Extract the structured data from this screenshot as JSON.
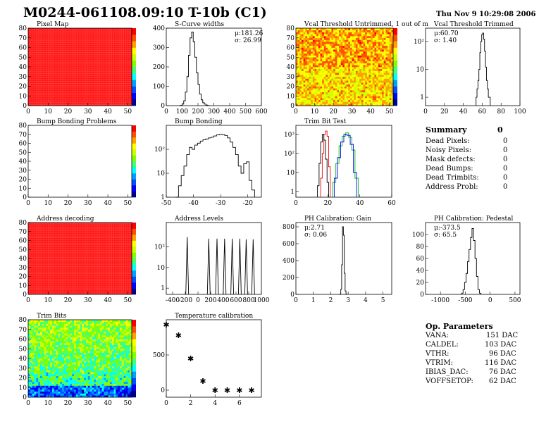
{
  "header": {
    "title": "M0244-061108.09:10 T-10b (C1)",
    "date": "Thu Nov  9 10:29:08 2006"
  },
  "colors": {
    "red": "#ff1a1a",
    "black": "#000000",
    "trim_red": "#ff0000",
    "trim_green": "#00bb00",
    "trim_blue": "#0000ff"
  },
  "summary": {
    "title": "Summary",
    "total": "0",
    "rows": [
      {
        "label": "Dead Pixels:",
        "value": "0"
      },
      {
        "label": "Noisy Pixels:",
        "value": "0"
      },
      {
        "label": "Mask defects:",
        "value": "0"
      },
      {
        "label": "Dead Bumps:",
        "value": "0"
      },
      {
        "label": "Dead Trimbits:",
        "value": "0"
      },
      {
        "label": "Address Probl:",
        "value": "0"
      }
    ]
  },
  "op_params": {
    "title": "Op. Parameters",
    "rows": [
      {
        "label": "VANA:",
        "value": "151 DAC"
      },
      {
        "label": "CALDEL:",
        "value": "103 DAC"
      },
      {
        "label": "VTHR:",
        "value": "96 DAC"
      },
      {
        "label": "VTRIM:",
        "value": "116 DAC"
      },
      {
        "label": "IBIAS_DAC:",
        "value": "76 DAC"
      },
      {
        "label": "VOFFSETOP:",
        "value": "62 DAC"
      }
    ]
  },
  "chart_data": [
    {
      "id": "pixel-map",
      "type": "heatmap",
      "title": "Pixel Map",
      "xlim": [
        0,
        52
      ],
      "ylim": [
        0,
        80
      ],
      "xticks": [
        "0",
        "10",
        "20",
        "30",
        "40",
        "50"
      ],
      "yticks": [
        "0",
        "10",
        "20",
        "30",
        "40",
        "50",
        "60",
        "70",
        "80"
      ],
      "fill": "uniform-max",
      "colorbar": true
    },
    {
      "id": "scurve-widths",
      "type": "line",
      "title": "S-Curve widths",
      "xlim": [
        0,
        600
      ],
      "ylim": [
        0,
        400
      ],
      "xticks": [
        "0",
        "100",
        "200",
        "300",
        "400",
        "500",
        "600"
      ],
      "yticks": [
        "0",
        "100",
        "200",
        "300",
        "400"
      ],
      "stats": [
        "μ:181.26",
        "σ: 26.99"
      ],
      "x": [
        95,
        105,
        115,
        125,
        135,
        145,
        155,
        165,
        175,
        185,
        195,
        205,
        215,
        225,
        235,
        245,
        255,
        265
      ],
      "y": [
        2,
        8,
        25,
        70,
        150,
        260,
        350,
        380,
        330,
        250,
        170,
        110,
        60,
        30,
        15,
        8,
        3,
        1
      ]
    },
    {
      "id": "vcal-untrimmed",
      "type": "heatmap",
      "title": "Vcal Threshold Untrimmed, 1 out of m",
      "xlim": [
        0,
        52
      ],
      "ylim": [
        0,
        80
      ],
      "xticks": [
        "0",
        "10",
        "20",
        "30",
        "40",
        "50"
      ],
      "yticks": [
        "0",
        "10",
        "20",
        "30",
        "40",
        "50",
        "60",
        "70",
        "80"
      ],
      "fill": "noisy-high",
      "colorbar": true
    },
    {
      "id": "vcal-trimmed",
      "type": "line",
      "title": "Vcal Threshold Trimmed",
      "xlim": [
        0,
        100
      ],
      "ylim": [
        0.5,
        300
      ],
      "log": true,
      "xticks": [
        "0",
        "20",
        "40",
        "60",
        "80",
        "100"
      ],
      "ytick_values": [
        1,
        10,
        100
      ],
      "yticks": [
        "1",
        "10",
        "10²"
      ],
      "stats": [
        "μ:60.70",
        "σ: 1.40"
      ],
      "x": [
        54,
        55,
        56,
        57,
        58,
        59,
        60,
        61,
        62,
        63,
        64,
        65,
        66,
        67,
        68
      ],
      "y": [
        1,
        2,
        4,
        10,
        40,
        100,
        180,
        200,
        120,
        45,
        12,
        4,
        2,
        1,
        1
      ]
    },
    {
      "id": "bump-problems",
      "type": "heatmap",
      "title": "Bump Bonding Problems",
      "xlim": [
        0,
        52
      ],
      "ylim": [
        0,
        80
      ],
      "xticks": [
        "0",
        "10",
        "20",
        "30",
        "40",
        "50"
      ],
      "yticks": [
        "0",
        "10",
        "20",
        "30",
        "40",
        "50",
        "60",
        "70",
        "80"
      ],
      "fill": "empty",
      "colorbar": true
    },
    {
      "id": "bump-bonding",
      "type": "line",
      "title": "Bump Bonding",
      "xlim": [
        -50,
        -15
      ],
      "ylim": [
        1,
        1000
      ],
      "log": true,
      "xticks": [
        "-50",
        "-40",
        "-30",
        "-20"
      ],
      "xtick_values": [
        -50,
        -40,
        -30,
        -20
      ],
      "ytick_values": [
        1,
        10,
        100
      ],
      "yticks": [
        "1",
        "10",
        "10²"
      ],
      "x": [
        -46,
        -45,
        -44,
        -43,
        -42,
        -41,
        -40,
        -39,
        -38,
        -37,
        -36,
        -35,
        -34,
        -33,
        -32,
        -31,
        -30,
        -29,
        -28,
        -27,
        -26,
        -25,
        -24,
        -23,
        -22,
        -21,
        -20,
        -19,
        -18
      ],
      "y": [
        1,
        3,
        8,
        20,
        60,
        120,
        100,
        150,
        180,
        220,
        250,
        270,
        300,
        320,
        360,
        400,
        420,
        410,
        380,
        300,
        200,
        120,
        60,
        20,
        10,
        25,
        30,
        5,
        2
      ]
    },
    {
      "id": "trim-bit-test",
      "type": "line",
      "title": "Trim Bit Test",
      "xlim": [
        0,
        60
      ],
      "ylim": [
        0.5,
        3000
      ],
      "log": true,
      "xticks": [
        "0",
        "20",
        "40",
        "60"
      ],
      "ytick_values": [
        1,
        10,
        100,
        1000
      ],
      "yticks": [
        "1",
        "10",
        "10²",
        "10³"
      ],
      "series": [
        {
          "color": "#ff0000",
          "x": [
            16,
            17,
            18,
            19,
            20,
            21
          ],
          "y": [
            5,
            100,
            1000,
            1500,
            800,
            20
          ]
        },
        {
          "color": "#000000",
          "x": [
            14,
            15,
            16,
            17,
            18,
            19,
            20
          ],
          "y": [
            2,
            30,
            400,
            1000,
            500,
            50,
            3
          ]
        },
        {
          "color": "#00bb00",
          "x": [
            24,
            26,
            28,
            30,
            32,
            34,
            36,
            38
          ],
          "y": [
            3,
            30,
            250,
            800,
            1200,
            700,
            150,
            5
          ]
        },
        {
          "color": "#0000ff",
          "x": [
            25,
            27,
            29,
            31,
            33,
            35,
            37
          ],
          "y": [
            5,
            60,
            400,
            1000,
            900,
            300,
            10
          ]
        }
      ]
    },
    {
      "id": "address-decoding",
      "type": "heatmap",
      "title": "Address decoding",
      "xlim": [
        0,
        52
      ],
      "ylim": [
        0,
        80
      ],
      "xticks": [
        "0",
        "10",
        "20",
        "30",
        "40",
        "50"
      ],
      "yticks": [
        "0",
        "10",
        "20",
        "30",
        "40",
        "50",
        "60",
        "70",
        "80"
      ],
      "fill": "uniform-max",
      "colorbar": true
    },
    {
      "id": "address-levels",
      "type": "line",
      "title": "Address Levels",
      "xlim": [
        -500,
        1000
      ],
      "ylim": [
        0.5,
        1500
      ],
      "log": true,
      "xticks": [
        "-400",
        "-200",
        "0",
        "200",
        "400",
        "600",
        "800",
        "1000"
      ],
      "xtick_values": [
        -400,
        -200,
        0,
        200,
        400,
        600,
        800,
        1000
      ],
      "ytick_values": [
        1,
        10,
        100
      ],
      "yticks": [
        "1",
        "10",
        "10²"
      ],
      "peaks": [
        {
          "x": -170,
          "y": 300
        },
        {
          "x": 170,
          "y": 250
        },
        {
          "x": 300,
          "y": 250
        },
        {
          "x": 420,
          "y": 250
        },
        {
          "x": 540,
          "y": 250
        },
        {
          "x": 660,
          "y": 250
        },
        {
          "x": 760,
          "y": 230
        },
        {
          "x": 870,
          "y": 230
        }
      ]
    },
    {
      "id": "ph-gain",
      "type": "line",
      "title": "PH Calibration: Gain",
      "xlim": [
        0,
        5.5
      ],
      "ylim": [
        0,
        850
      ],
      "xticks": [
        "0",
        "1",
        "2",
        "3",
        "4",
        "5"
      ],
      "yticks": [
        "0",
        "200",
        "400",
        "600",
        "800"
      ],
      "stats": [
        "μ:2.71",
        "σ: 0.06"
      ],
      "x": [
        2.55,
        2.6,
        2.65,
        2.7,
        2.75,
        2.8,
        2.85,
        2.9
      ],
      "y": [
        5,
        60,
        350,
        800,
        700,
        250,
        40,
        5
      ]
    },
    {
      "id": "ph-pedestal",
      "type": "line",
      "title": "PH Calibration: Pedestal",
      "xlim": [
        -1300,
        600
      ],
      "ylim": [
        0,
        120
      ],
      "xticks": [
        "-1000",
        "-500",
        "0",
        "500"
      ],
      "xtick_values": [
        -1000,
        -500,
        0,
        500
      ],
      "yticks": [
        "0",
        "20",
        "40",
        "60",
        "80",
        "100"
      ],
      "ytick_values": [
        0,
        20,
        40,
        60,
        80,
        100
      ],
      "stats": [
        "μ:-373.5",
        "σ: 65.5"
      ],
      "x": [
        -560,
        -530,
        -500,
        -470,
        -440,
        -410,
        -380,
        -350,
        -320,
        -290,
        -260,
        -230,
        -200
      ],
      "y": [
        2,
        8,
        20,
        35,
        55,
        75,
        95,
        110,
        90,
        60,
        30,
        8,
        2
      ]
    },
    {
      "id": "trim-bits",
      "type": "heatmap",
      "title": "Trim Bits",
      "xlim": [
        0,
        52
      ],
      "ylim": [
        0,
        80
      ],
      "xticks": [
        "0",
        "10",
        "20",
        "30",
        "40",
        "50"
      ],
      "yticks": [
        "0",
        "10",
        "20",
        "30",
        "40",
        "50",
        "60",
        "70",
        "80"
      ],
      "fill": "mixed-low",
      "colorbar": true
    },
    {
      "id": "temp-calibration",
      "type": "scatter",
      "title": "Temperature calibration",
      "xlim": [
        0,
        7.8
      ],
      "ylim": [
        -100,
        1000
      ],
      "xticks": [
        "0",
        "2",
        "4",
        "6"
      ],
      "xtick_values": [
        0,
        2,
        4,
        6
      ],
      "yticks": [
        "0",
        "500"
      ],
      "ytick_values": [
        0,
        500
      ],
      "x": [
        0,
        1,
        2,
        3,
        4,
        5,
        6,
        7
      ],
      "y": [
        930,
        780,
        450,
        130,
        0,
        0,
        0,
        0
      ]
    }
  ]
}
